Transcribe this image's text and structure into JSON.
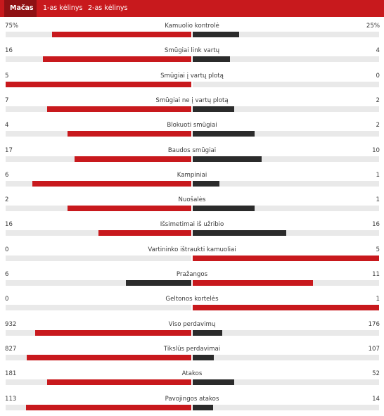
{
  "colors": {
    "tabbar": "#c8191d",
    "tab_active": "#8f1114",
    "leader": "#c8191d",
    "trailer": "#2b2b2b",
    "track": "#e9e9e9"
  },
  "tabs": [
    {
      "label": "Mačas",
      "active": true
    },
    {
      "label": "1-as kėlinys",
      "active": false
    },
    {
      "label": "2-as kėlinys",
      "active": false
    }
  ],
  "stats": [
    {
      "label": "Kamuolio kontrolė",
      "home": "75%",
      "away": "25%",
      "home_value": 75,
      "away_value": 25
    },
    {
      "label": "Smūgiai link vartų",
      "home": "16",
      "away": "4",
      "home_value": 16,
      "away_value": 4
    },
    {
      "label": "Smūgiai į vartų plotą",
      "home": "5",
      "away": "0",
      "home_value": 5,
      "away_value": 0
    },
    {
      "label": "Smūgiai ne į vartų plotą",
      "home": "7",
      "away": "2",
      "home_value": 7,
      "away_value": 2
    },
    {
      "label": "Blokuoti smūgiai",
      "home": "4",
      "away": "2",
      "home_value": 4,
      "away_value": 2
    },
    {
      "label": "Baudos smūgiai",
      "home": "17",
      "away": "10",
      "home_value": 17,
      "away_value": 10
    },
    {
      "label": "Kampiniai",
      "home": "6",
      "away": "1",
      "home_value": 6,
      "away_value": 1
    },
    {
      "label": "Nuošalės",
      "home": "2",
      "away": "1",
      "home_value": 2,
      "away_value": 1
    },
    {
      "label": "Išsimetimai iš užribio",
      "home": "16",
      "away": "16",
      "home_value": 16,
      "away_value": 16
    },
    {
      "label": "Vartininko ištraukti kamuoliai",
      "home": "0",
      "away": "5",
      "home_value": 0,
      "away_value": 5
    },
    {
      "label": "Pražangos",
      "home": "6",
      "away": "11",
      "home_value": 6,
      "away_value": 11
    },
    {
      "label": "Geltonos kortelės",
      "home": "0",
      "away": "1",
      "home_value": 0,
      "away_value": 1
    },
    {
      "label": "Viso perdavimų",
      "home": "932",
      "away": "176",
      "home_value": 932,
      "away_value": 176
    },
    {
      "label": "Tikslūs perdavimai",
      "home": "827",
      "away": "107",
      "home_value": 827,
      "away_value": 107
    },
    {
      "label": "Atakos",
      "home": "181",
      "away": "52",
      "home_value": 181,
      "away_value": 52
    },
    {
      "label": "Pavojingos atakos",
      "home": "113",
      "away": "14",
      "home_value": 113,
      "away_value": 14
    }
  ]
}
